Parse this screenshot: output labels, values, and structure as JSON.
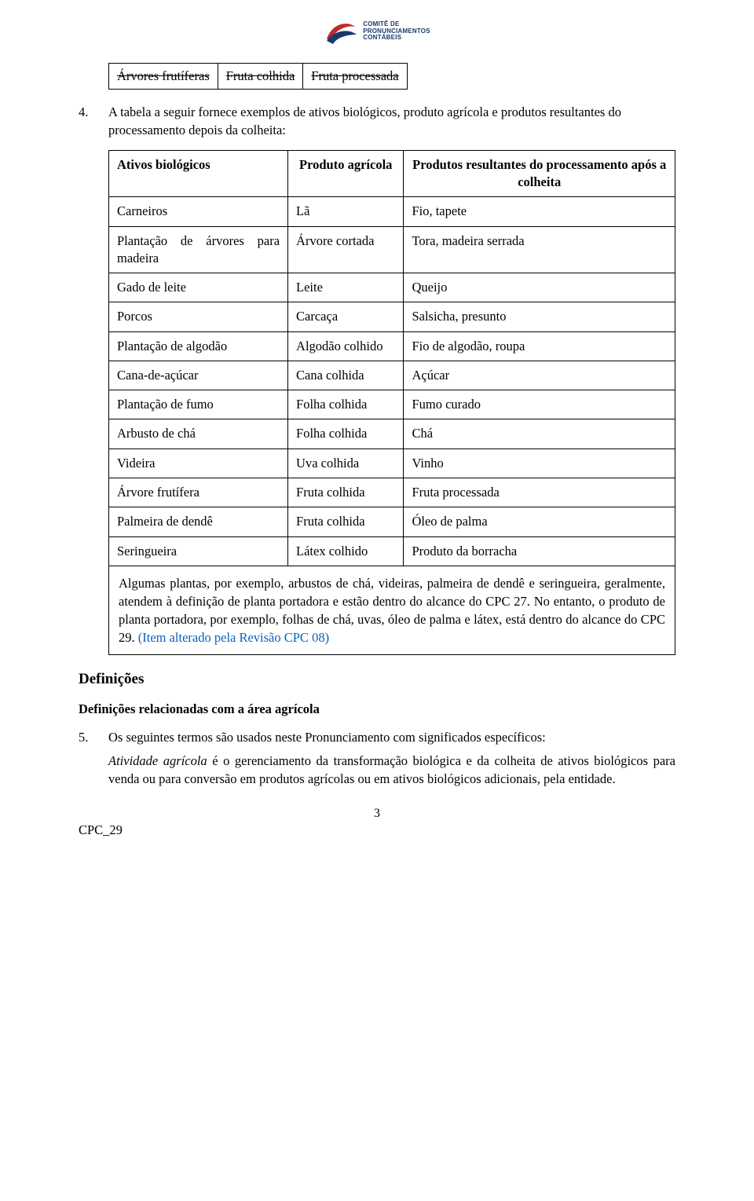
{
  "logo": {
    "line1": "COMITÊ DE",
    "line2": "PRONUNCIAMENTOS",
    "line3": "CONTÁBEIS",
    "swoosh_red": "#c1272d",
    "swoosh_blue": "#173a6a"
  },
  "strikethrough_table": {
    "cells": [
      "Árvores frutíferas",
      "Fruta colhida",
      "Fruta processada"
    ]
  },
  "item4": {
    "num": "4.",
    "text": "A tabela a seguir fornece exemplos de ativos biológicos, produto agrícola e produtos resultantes do processamento depois da colheita:"
  },
  "main_table": {
    "headers": [
      "Ativos biológicos",
      "Produto agrícola",
      "Produtos resultantes do processamento após a colheita"
    ],
    "rows": [
      [
        "Carneiros",
        "Lã",
        "Fio, tapete"
      ],
      [
        "Plantação de árvores para madeira",
        "Árvore cortada",
        "Tora, madeira serrada"
      ],
      [
        "Gado de leite",
        "Leite",
        "Queijo"
      ],
      [
        "Porcos",
        "Carcaça",
        "Salsicha, presunto"
      ],
      [
        "Plantação de algodão",
        "Algodão colhido",
        "Fio de algodão, roupa"
      ],
      [
        "Cana-de-açúcar",
        "Cana colhida",
        "Açúcar"
      ],
      [
        "Plantação de fumo",
        "Folha colhida",
        "Fumo curado"
      ],
      [
        "Arbusto de chá",
        "Folha colhida",
        "Chá"
      ],
      [
        "Videira",
        "Uva colhida",
        "Vinho"
      ],
      [
        "Árvore frutífera",
        "Fruta colhida",
        "Fruta processada"
      ],
      [
        "Palmeira de dendê",
        "Fruta colhida",
        "Óleo de palma"
      ],
      [
        "Seringueira",
        "Látex colhido",
        "Produto da borracha"
      ]
    ],
    "note_main": "Algumas plantas, por exemplo, arbustos de chá, videiras, palmeira de dendê e seringueira, geralmente, atendem à definição de planta portadora e estão dentro do alcance do CPC 27. No entanto, o produto de planta portadora, por exemplo, folhas de chá, uvas, óleo de palma e látex, está dentro do alcance do CPC 29. ",
    "note_revision": "(Item alterado pela Revisão CPC 08)"
  },
  "section_heading": "Definições",
  "subsection_heading": "Definições relacionadas com a área agrícola",
  "item5": {
    "num": "5.",
    "lead": "Os seguintes termos são usados neste Pronunciamento com significados específicos:",
    "def_term": "Atividade agrícola",
    "def_rest": " é o gerenciamento da transformação biológica e da colheita de ativos biológicos para venda ou para conversão em produtos agrícolas ou em ativos biológicos adicionais, pela entidade."
  },
  "footer": {
    "page": "3",
    "code": "CPC_29"
  },
  "first_row_justify": true
}
